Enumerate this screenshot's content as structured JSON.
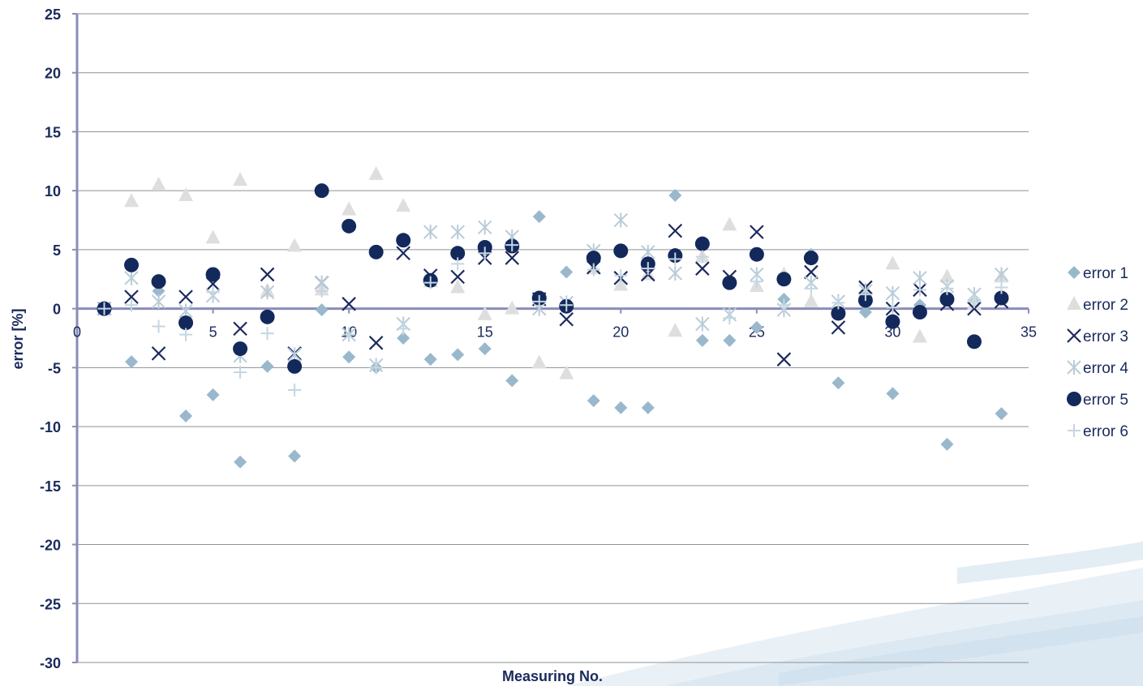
{
  "chart_data": {
    "type": "scatter",
    "title": "",
    "xlabel": "Measuring No.",
    "ylabel": "error [%]",
    "xlim": [
      0,
      35
    ],
    "ylim": [
      -30,
      25
    ],
    "x_ticks": [
      0,
      5,
      10,
      15,
      20,
      25,
      30,
      35
    ],
    "y_ticks": [
      25,
      20,
      15,
      10,
      5,
      0,
      -5,
      -10,
      -15,
      -20,
      -25,
      -30
    ],
    "grid": "horizontal",
    "legend_position": "right",
    "series": [
      {
        "name": "error 1",
        "marker": "diamond",
        "color": "#9ab8cc",
        "points": [
          [
            1,
            0
          ],
          [
            2,
            -4.5
          ],
          [
            3,
            1.5
          ],
          [
            4,
            -9.1
          ],
          [
            5,
            -7.3
          ],
          [
            6,
            -13
          ],
          [
            7,
            -4.9
          ],
          [
            8,
            -12.5
          ],
          [
            9,
            -0.1
          ],
          [
            10,
            -4.1
          ],
          [
            11,
            -5
          ],
          [
            12,
            -2.5
          ],
          [
            13,
            -4.3
          ],
          [
            14,
            -3.9
          ],
          [
            15,
            -3.4
          ],
          [
            16,
            -6.1
          ],
          [
            17,
            7.8
          ],
          [
            18,
            3.1
          ],
          [
            19,
            -7.8
          ],
          [
            20,
            -8.4
          ],
          [
            21,
            -8.4
          ],
          [
            22,
            9.6
          ],
          [
            23,
            -2.7
          ],
          [
            24,
            -2.7
          ],
          [
            25,
            -1.6
          ],
          [
            26,
            0.8
          ],
          [
            27,
            4.6
          ],
          [
            28,
            -6.3
          ],
          [
            29,
            -0.3
          ],
          [
            30,
            -7.2
          ],
          [
            31,
            0.3
          ],
          [
            32,
            -11.5
          ],
          [
            33,
            0.5
          ],
          [
            34,
            -8.9
          ]
        ]
      },
      {
        "name": "error 2",
        "marker": "triangle",
        "color": "#dedede",
        "points": [
          [
            1,
            0
          ],
          [
            2,
            9.1
          ],
          [
            3,
            10.5
          ],
          [
            4,
            9.6
          ],
          [
            5,
            6
          ],
          [
            6,
            10.9
          ],
          [
            7,
            1.5
          ],
          [
            8,
            5.3
          ],
          [
            9,
            1.6
          ],
          [
            10,
            8.4
          ],
          [
            11,
            11.4
          ],
          [
            12,
            8.7
          ],
          [
            13,
            2.3
          ],
          [
            14,
            1.8
          ],
          [
            15,
            -0.5
          ],
          [
            16,
            0
          ],
          [
            17,
            -4.6
          ],
          [
            18,
            -5.5
          ],
          [
            19,
            3.4
          ],
          [
            20,
            2
          ],
          [
            21,
            2.9
          ],
          [
            22,
            -1.9
          ],
          [
            23,
            4.4
          ],
          [
            24,
            7.1
          ],
          [
            25,
            1.9
          ],
          [
            26,
            2.9
          ],
          [
            27,
            0.6
          ],
          [
            28,
            -0.3
          ],
          [
            29,
            1.6
          ],
          [
            30,
            3.8
          ],
          [
            31,
            -2.4
          ],
          [
            32,
            2.7
          ],
          [
            33,
            0.4
          ],
          [
            34,
            2.7
          ]
        ]
      },
      {
        "name": "error 3",
        "marker": "x",
        "color": "#1c2a5e",
        "points": [
          [
            1,
            0
          ],
          [
            2,
            1
          ],
          [
            3,
            -3.8
          ],
          [
            4,
            1
          ],
          [
            5,
            2.1
          ],
          [
            6,
            -1.7
          ],
          [
            7,
            2.9
          ],
          [
            8,
            -3.8
          ],
          [
            9,
            2.2
          ],
          [
            10,
            0.4
          ],
          [
            11,
            -2.9
          ],
          [
            12,
            4.7
          ],
          [
            13,
            2.8
          ],
          [
            14,
            2.7
          ],
          [
            15,
            4.3
          ],
          [
            16,
            4.3
          ],
          [
            17,
            0.8
          ],
          [
            18,
            -0.9
          ],
          [
            19,
            3.5
          ],
          [
            20,
            2.6
          ],
          [
            21,
            2.9
          ],
          [
            22,
            6.6
          ],
          [
            23,
            3.4
          ],
          [
            24,
            2.7
          ],
          [
            25,
            6.5
          ],
          [
            26,
            -4.3
          ],
          [
            27,
            3.1
          ],
          [
            28,
            -1.6
          ],
          [
            29,
            1.8
          ],
          [
            30,
            0
          ],
          [
            31,
            1.6
          ],
          [
            32,
            0.4
          ],
          [
            33,
            0
          ],
          [
            34,
            0.6
          ]
        ]
      },
      {
        "name": "error 4",
        "marker": "asterisk",
        "color": "#b9ccd8",
        "points": [
          [
            1,
            0
          ],
          [
            2,
            2.6
          ],
          [
            3,
            0.6
          ],
          [
            4,
            -0.2
          ],
          [
            5,
            1.1
          ],
          [
            6,
            -4
          ],
          [
            7,
            1.4
          ],
          [
            8,
            -3.9
          ],
          [
            9,
            2.2
          ],
          [
            10,
            -2.2
          ],
          [
            11,
            -4.8
          ],
          [
            12,
            -1.3
          ],
          [
            13,
            6.5
          ],
          [
            14,
            6.5
          ],
          [
            15,
            6.9
          ],
          [
            16,
            6.1
          ],
          [
            17,
            0
          ],
          [
            18,
            0.5
          ],
          [
            19,
            4.9
          ],
          [
            20,
            7.5
          ],
          [
            21,
            4.8
          ],
          [
            22,
            3
          ],
          [
            23,
            -1.3
          ],
          [
            24,
            -0.5
          ],
          [
            25,
            2.9
          ],
          [
            26,
            -0.1
          ],
          [
            27,
            2.2
          ],
          [
            28,
            0.6
          ],
          [
            29,
            1.5
          ],
          [
            30,
            1.3
          ],
          [
            31,
            2.6
          ],
          [
            32,
            1.9
          ],
          [
            33,
            1.2
          ],
          [
            34,
            2.9
          ]
        ]
      },
      {
        "name": "error 5",
        "marker": "circle",
        "color": "#13295c",
        "points": [
          [
            1,
            0
          ],
          [
            2,
            3.7
          ],
          [
            3,
            2.3
          ],
          [
            4,
            -1.2
          ],
          [
            5,
            2.9
          ],
          [
            6,
            -3.4
          ],
          [
            7,
            -0.7
          ],
          [
            8,
            -4.9
          ],
          [
            9,
            10
          ],
          [
            10,
            7
          ],
          [
            11,
            4.8
          ],
          [
            12,
            5.8
          ],
          [
            13,
            2.4
          ],
          [
            14,
            4.7
          ],
          [
            15,
            5.2
          ],
          [
            16,
            5.3
          ],
          [
            17,
            0.9
          ],
          [
            18,
            0.2
          ],
          [
            19,
            4.3
          ],
          [
            20,
            4.9
          ],
          [
            21,
            3.8
          ],
          [
            22,
            4.5
          ],
          [
            23,
            5.5
          ],
          [
            24,
            2.2
          ],
          [
            25,
            4.6
          ],
          [
            26,
            2.5
          ],
          [
            27,
            4.3
          ],
          [
            28,
            -0.4
          ],
          [
            29,
            0.7
          ],
          [
            30,
            -1.1
          ],
          [
            31,
            -0.3
          ],
          [
            32,
            0.8
          ],
          [
            33,
            -2.8
          ],
          [
            34,
            0.9
          ]
        ]
      },
      {
        "name": "error 6",
        "marker": "plus",
        "color": "#c4d6e2",
        "points": [
          [
            1,
            0
          ],
          [
            2,
            0.3
          ],
          [
            3,
            -1.5
          ],
          [
            4,
            -2.2
          ],
          [
            5,
            1.4
          ],
          [
            6,
            -5.4
          ],
          [
            7,
            -2.1
          ],
          [
            8,
            -6.9
          ],
          [
            9,
            1.5
          ],
          [
            10,
            -2.2
          ],
          [
            11,
            -5
          ],
          [
            12,
            -1.7
          ],
          [
            13,
            2.2
          ],
          [
            14,
            3.8
          ],
          [
            15,
            4.7
          ],
          [
            16,
            5.4
          ],
          [
            17,
            0.6
          ],
          [
            18,
            0.3
          ],
          [
            19,
            3.3
          ],
          [
            20,
            2.8
          ],
          [
            21,
            3.4
          ],
          [
            22,
            4.2
          ],
          [
            23,
            4.4
          ],
          [
            24,
            -0.8
          ],
          [
            25,
            2.3
          ],
          [
            26,
            0.3
          ],
          [
            27,
            1.7
          ],
          [
            28,
            0.5
          ],
          [
            29,
            1.2
          ],
          [
            30,
            0.1
          ],
          [
            31,
            1.6
          ],
          [
            32,
            1.7
          ],
          [
            33,
            0.6
          ],
          [
            34,
            1.8
          ]
        ]
      }
    ]
  }
}
